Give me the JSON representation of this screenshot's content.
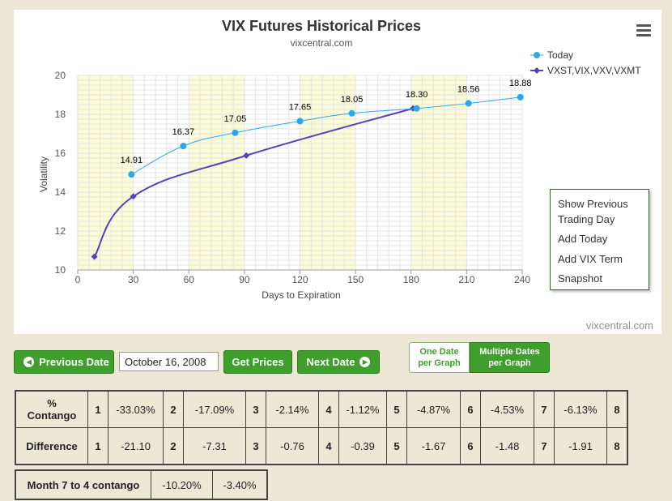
{
  "chart_data": {
    "type": "line",
    "title": "VIX Futures Historical Prices",
    "subtitle": "vixcentral.com",
    "xlabel": "Days to Expiration",
    "ylabel": "Volatility",
    "xlim": [
      0,
      240
    ],
    "ylim": [
      10,
      20
    ],
    "x_ticks": [
      0,
      30,
      60,
      90,
      120,
      150,
      180,
      210,
      240
    ],
    "y_ticks": [
      10,
      12,
      14,
      16,
      18,
      20
    ],
    "x_bands": [
      [
        0,
        30
      ],
      [
        60,
        90
      ],
      [
        120,
        150
      ],
      [
        180,
        210
      ]
    ],
    "grid": true,
    "legend_position": "top-right",
    "series": [
      {
        "name": "Today",
        "color": "#2ca8ea",
        "marker": "circle",
        "x": [
          29,
          57,
          85,
          120,
          148,
          183,
          211,
          239
        ],
        "y": [
          14.91,
          16.37,
          17.05,
          17.65,
          18.05,
          18.3,
          18.56,
          18.88
        ],
        "labels": [
          "14.91",
          "16.37",
          "17.05",
          "17.65",
          "18.05",
          "18.30",
          "18.56",
          "18.88"
        ]
      },
      {
        "name": "VXST,VIX,VXV,VXMT",
        "color": "#5641b5",
        "marker": "diamond",
        "x": [
          9,
          30,
          91,
          181
        ],
        "y": [
          10.68,
          13.78,
          15.88,
          18.3
        ]
      }
    ]
  },
  "chart_credit": "vixcentral.com",
  "menu": {
    "items": [
      "Show Previous",
      "Trading Day",
      "Add Today",
      "Add VIX Term",
      "Snapshot"
    ]
  },
  "controls": {
    "previous_date": "Previous Date",
    "date_value": "October 16, 2008",
    "get_prices": "Get Prices",
    "next_date": "Next Date",
    "one_date_line1": "One Date",
    "one_date_line2": "per Graph",
    "multiple_dates_line1": "Multiple Dates",
    "multiple_dates_line2": "per Graph"
  },
  "contango_table": {
    "row1_label_line1": "%",
    "row1_label_line2": "Contango",
    "row2_label": "Difference",
    "months": [
      "1",
      "2",
      "3",
      "4",
      "5",
      "6",
      "7",
      "8"
    ],
    "contango": [
      "-33.03%",
      "-17.09%",
      "-2.14%",
      "-1.12%",
      "-4.87%",
      "-4.53%",
      "-6.13%"
    ],
    "difference": [
      "-21.10",
      "-7.31",
      "-0.76",
      "-0.39",
      "-1.67",
      "-1.48",
      "-1.91"
    ]
  },
  "month_table": {
    "label": "Month 7 to 4 contango",
    "values": [
      "-10.20%",
      "-3.40%"
    ]
  }
}
